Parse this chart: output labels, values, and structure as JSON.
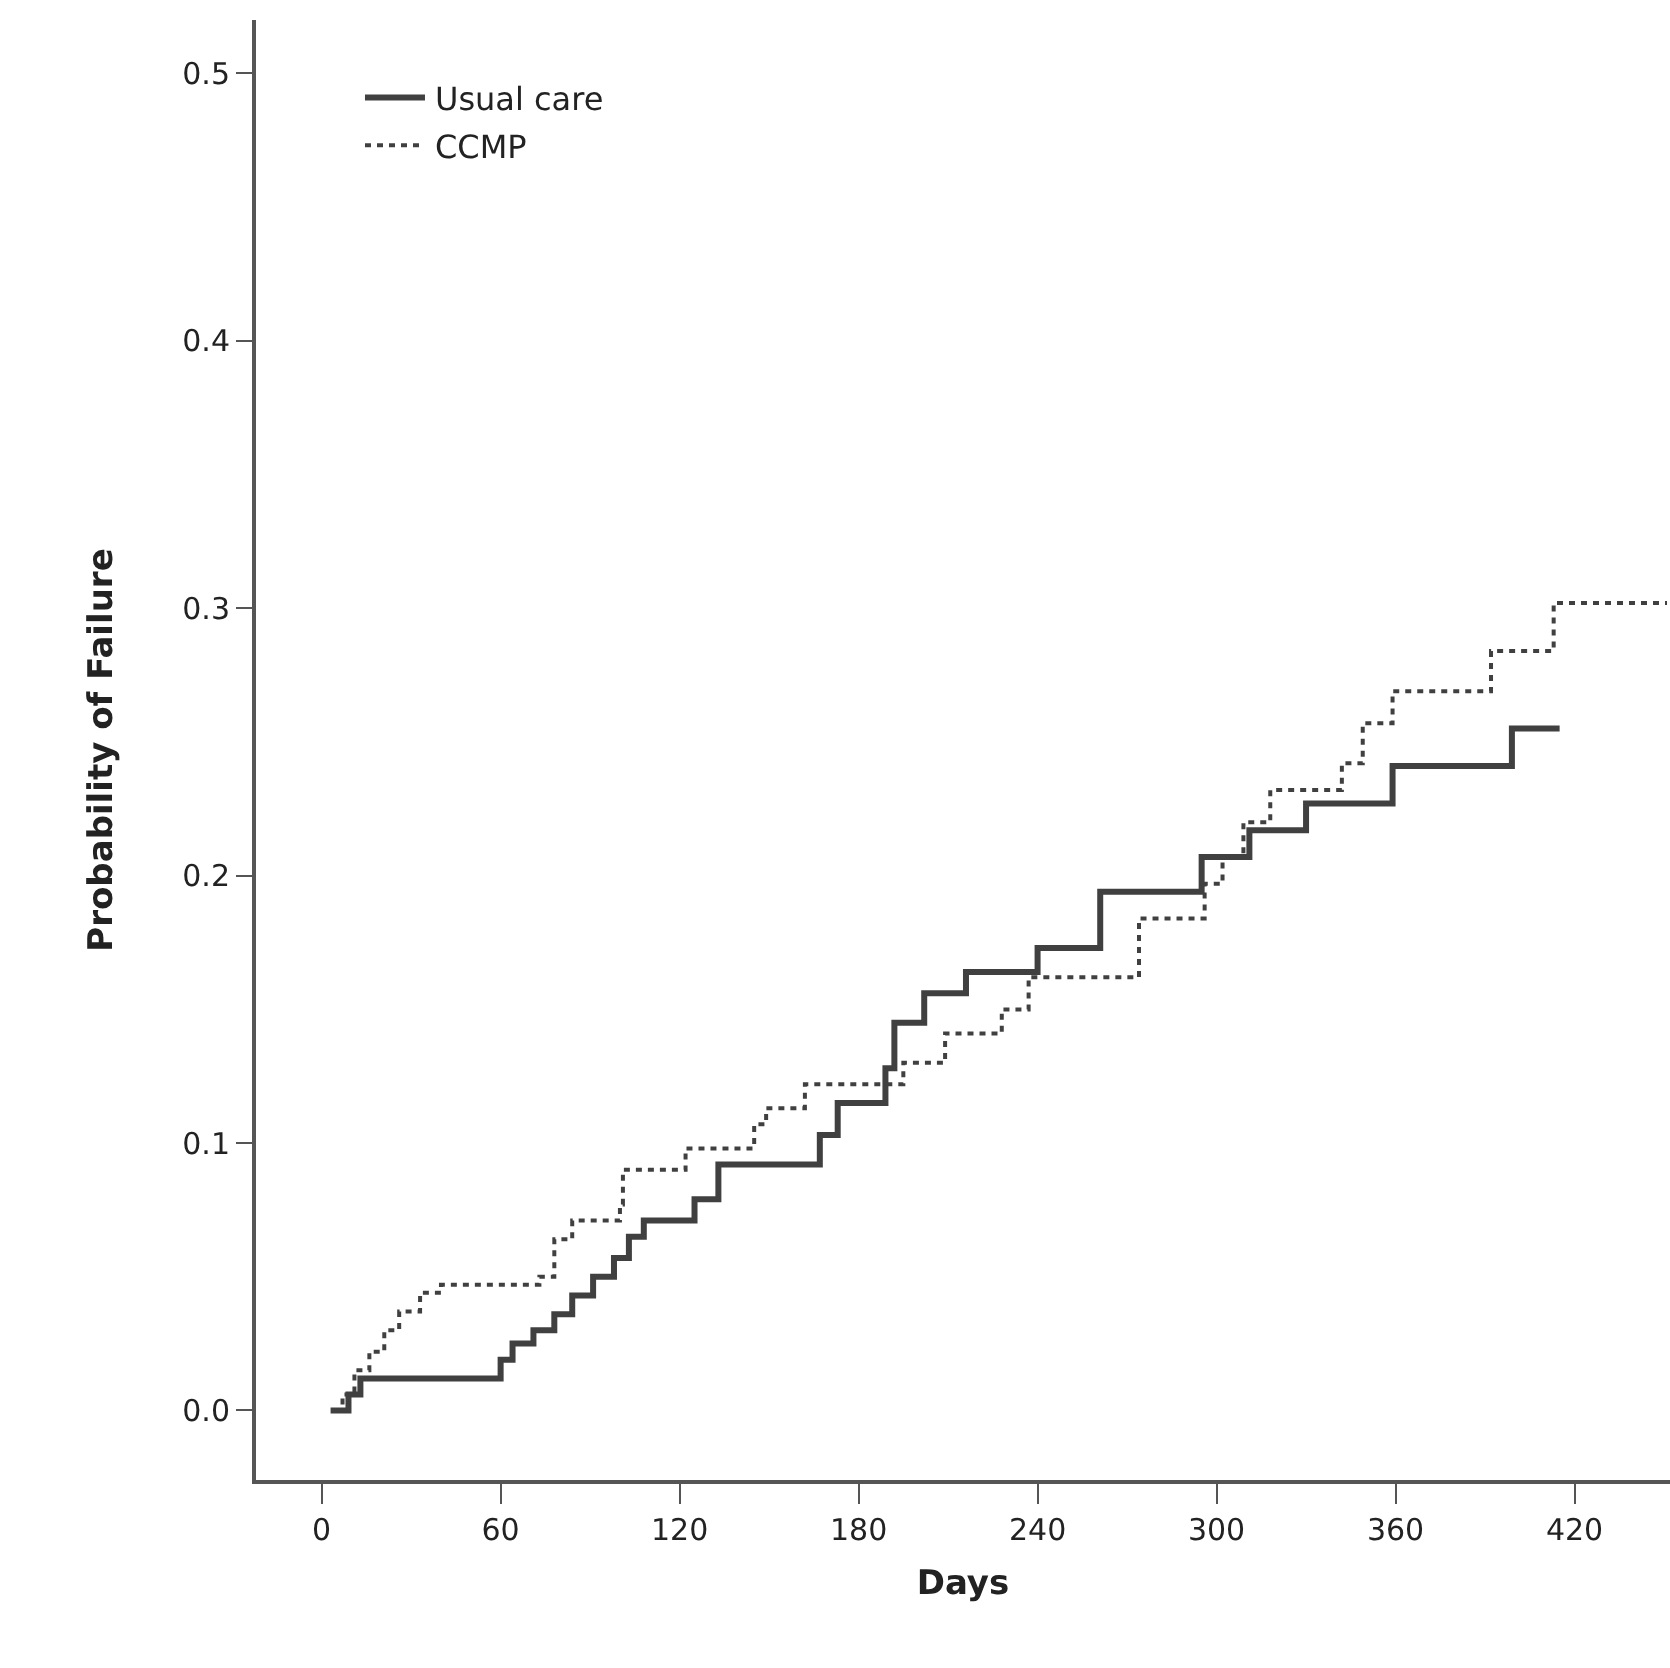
{
  "chart_data": {
    "type": "step",
    "xlabel": "Days",
    "ylabel": "Probability of Failure",
    "xlim": [
      -22,
      452
    ],
    "xticks": [
      0,
      60,
      120,
      180,
      240,
      300,
      360,
      420
    ],
    "ylim": [
      -0.026,
      0.52
    ],
    "yticks": [
      {
        "value": 0,
        "label": "0.0"
      },
      0.1,
      0.2,
      0.3,
      0.4,
      0.5
    ],
    "grid": false,
    "legend": "top left",
    "marker": "none",
    "series": [
      {
        "name": "Usual care",
        "color": "#404040",
        "line_style": "solid",
        "x": [
          3,
          9,
          13,
          60,
          64,
          71,
          78,
          84,
          91,
          98,
          103,
          108,
          125,
          133,
          167,
          173,
          189,
          192,
          202,
          216,
          240,
          261,
          295,
          311,
          330,
          359,
          399,
          415
        ],
        "values": [
          0,
          0.006,
          0.012,
          0.019,
          0.025,
          0.03,
          0.036,
          0.043,
          0.05,
          0.057,
          0.065,
          0.071,
          0.079,
          0.092,
          0.103,
          0.115,
          0.128,
          0.145,
          0.156,
          0.164,
          0.173,
          0.194,
          0.207,
          0.217,
          0.227,
          0.241,
          0.255,
          0.255
        ]
      },
      {
        "name": "CCMP",
        "color": "#404040",
        "line_style": "dotted",
        "x": [
          5,
          7,
          11,
          16,
          21,
          26,
          33,
          40,
          73,
          78,
          84,
          100,
          101,
          122,
          145,
          149,
          162,
          195,
          209,
          228,
          237,
          274,
          296,
          302,
          309,
          318,
          342,
          349,
          359,
          392,
          413,
          451
        ],
        "values": [
          0,
          0.006,
          0.015,
          0.022,
          0.03,
          0.037,
          0.044,
          0.047,
          0.05,
          0.064,
          0.071,
          0.077,
          0.09,
          0.098,
          0.107,
          0.113,
          0.122,
          0.13,
          0.141,
          0.15,
          0.162,
          0.184,
          0.197,
          0.207,
          0.22,
          0.232,
          0.242,
          0.257,
          0.269,
          0.284,
          0.302,
          0.302
        ]
      }
    ]
  }
}
